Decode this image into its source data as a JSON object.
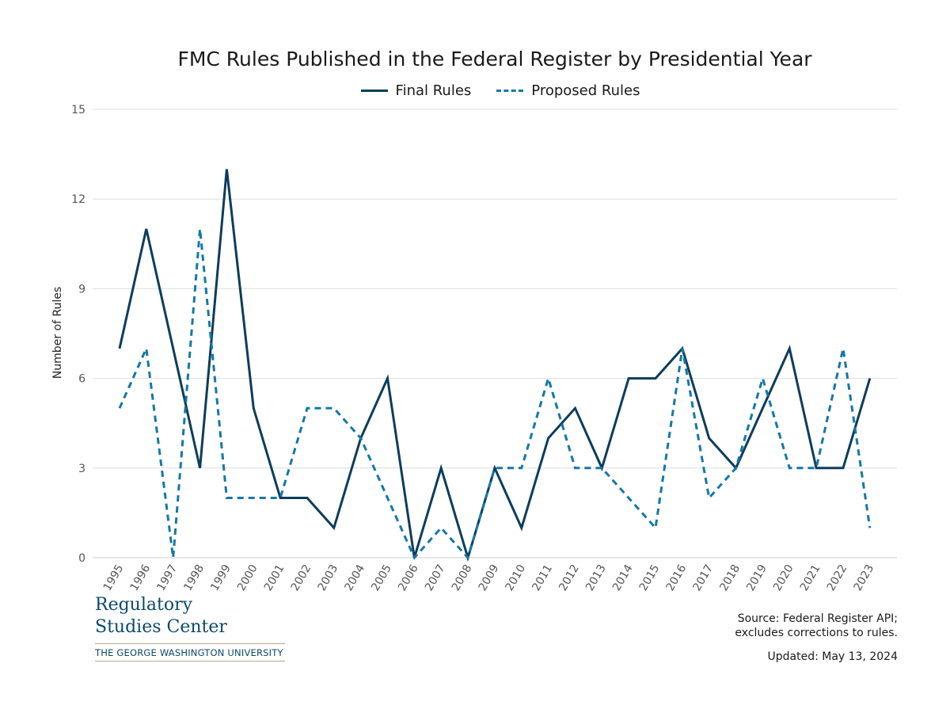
{
  "chart_data": {
    "type": "line",
    "title": "FMC Rules Published in the Federal Register by Presidential Year",
    "ylabel": "Number of Rules",
    "xlabel": "",
    "ylim": [
      0,
      15
    ],
    "yticks": [
      "0",
      "3",
      "6",
      "9",
      "12",
      "15"
    ],
    "grid": "horizontal",
    "legend_position": "top-center",
    "categories": [
      "1995",
      "1996",
      "1997",
      "1998",
      "1999",
      "2000",
      "2001",
      "2002",
      "2003",
      "2004",
      "2005",
      "2006",
      "2007",
      "2008",
      "2009",
      "2010",
      "2011",
      "2012",
      "2013",
      "2014",
      "2015",
      "2016",
      "2017",
      "2018",
      "2019",
      "2020",
      "2021",
      "2022",
      "2023"
    ],
    "series": [
      {
        "name": "Final Rules",
        "style": "solid",
        "color": "#0d3d5c",
        "values": [
          7,
          11,
          7,
          3,
          13,
          5,
          2,
          2,
          1,
          4,
          6,
          0,
          3,
          0,
          3,
          1,
          4,
          5,
          3,
          6,
          6,
          7,
          4,
          3,
          5,
          7,
          3,
          3,
          6
        ]
      },
      {
        "name": "Proposed Rules",
        "style": "dashed",
        "color": "#1478a6",
        "values": [
          5,
          7,
          0,
          11,
          2,
          2,
          2,
          5,
          5,
          4,
          2,
          0,
          1,
          0,
          3,
          3,
          6,
          3,
          3,
          2,
          1,
          7,
          2,
          3,
          6,
          3,
          3,
          7,
          1
        ]
      }
    ]
  },
  "logo": {
    "line1": "Regulatory",
    "line2": "Studies Center",
    "sub": "THE GEORGE WASHINGTON UNIVERSITY"
  },
  "source": {
    "line1": "Source: Federal Register API;",
    "line2": "excludes corrections to rules."
  },
  "updated": "Updated: May 13, 2024"
}
